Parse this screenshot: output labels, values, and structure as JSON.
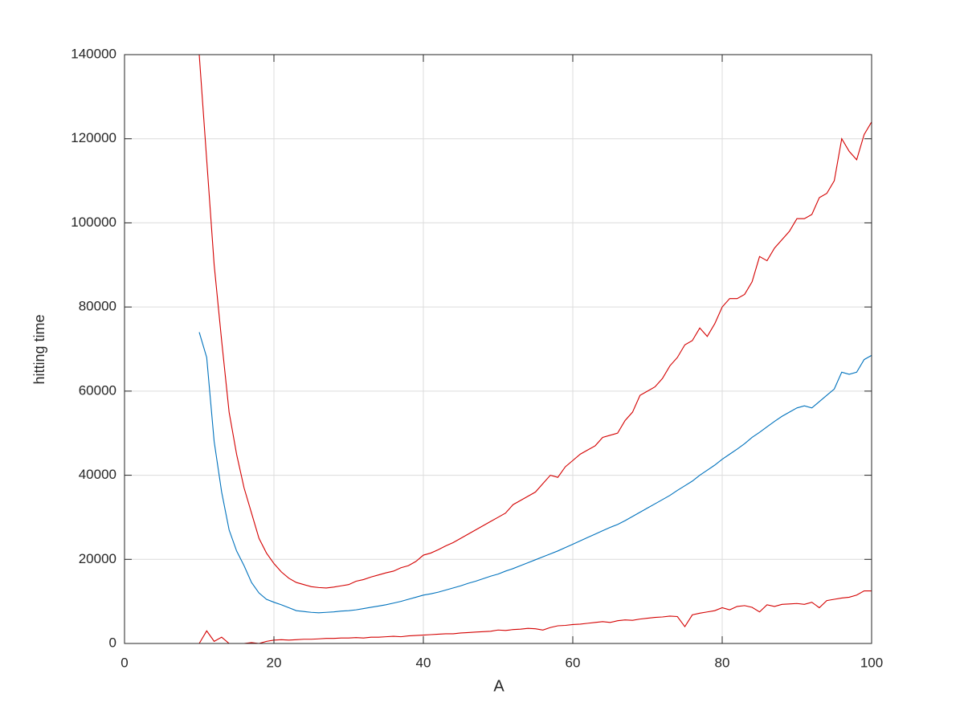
{
  "chart_data": {
    "type": "line",
    "x_label": "A",
    "y_label": "hitting time",
    "x": [
      10,
      11,
      12,
      13,
      14,
      15,
      16,
      17,
      18,
      19,
      20,
      21,
      22,
      23,
      24,
      25,
      26,
      27,
      28,
      29,
      30,
      31,
      32,
      33,
      34,
      35,
      36,
      37,
      38,
      39,
      40,
      41,
      42,
      43,
      44,
      45,
      46,
      47,
      48,
      49,
      50,
      51,
      52,
      53,
      54,
      55,
      56,
      57,
      58,
      59,
      60,
      61,
      62,
      63,
      64,
      65,
      66,
      67,
      68,
      69,
      70,
      71,
      72,
      73,
      74,
      75,
      76,
      77,
      78,
      79,
      80,
      81,
      82,
      83,
      84,
      85,
      86,
      87,
      88,
      89,
      90,
      91,
      92,
      93,
      94,
      95,
      96,
      97,
      98,
      99,
      100
    ],
    "series": [
      {
        "color": "#d40000",
        "values": [
          140000,
          115000,
          90000,
          72000,
          55000,
          45000,
          37000,
          31000,
          25000,
          21500,
          19000,
          17000,
          15500,
          14500,
          14000,
          13500,
          13300,
          13200,
          13400,
          13700,
          14000,
          14800,
          15200,
          15800,
          16300,
          16800,
          17200,
          18000,
          18500,
          19500,
          21000,
          21500,
          22300,
          23200,
          24000,
          25000,
          26000,
          27000,
          28000,
          29000,
          30000,
          31000,
          33000,
          34000,
          35000,
          36000,
          38000,
          40000,
          39500,
          42000,
          43500,
          45000,
          46000,
          47000,
          49000,
          49500,
          50000,
          53000,
          55000,
          59000,
          60000,
          61000,
          63000,
          66000,
          68000,
          71000,
          72000,
          75000,
          73000,
          76000,
          80000,
          82000,
          82000,
          83000,
          86000,
          92000,
          91000,
          94000,
          96000,
          98000,
          101000,
          101000,
          102000,
          106000,
          107000,
          110000,
          120000,
          117000,
          115000,
          121000,
          124000
        ]
      },
      {
        "color": "#0072bd",
        "values": [
          74000,
          68000,
          48000,
          36000,
          27000,
          22000,
          18500,
          14500,
          12000,
          10500,
          9800,
          9200,
          8500,
          7800,
          7600,
          7400,
          7300,
          7400,
          7500,
          7700,
          7800,
          8000,
          8300,
          8600,
          8900,
          9200,
          9600,
          10000,
          10500,
          11000,
          11500,
          11800,
          12200,
          12700,
          13200,
          13700,
          14300,
          14800,
          15400,
          16000,
          16500,
          17200,
          17800,
          18500,
          19200,
          19900,
          20600,
          21300,
          22000,
          22800,
          23600,
          24400,
          25200,
          26000,
          26800,
          27600,
          28300,
          29200,
          30200,
          31200,
          32200,
          33200,
          34200,
          35200,
          36400,
          37500,
          38600,
          40000,
          41200,
          42400,
          43800,
          45000,
          46200,
          47500,
          49000,
          50200,
          51500,
          52800,
          54000,
          55000,
          56000,
          56500,
          56000,
          57500,
          59000,
          60500,
          64500,
          64000,
          64500,
          67500,
          68500
        ]
      },
      {
        "color": "#d40000",
        "values": [
          0,
          3000,
          500,
          1500,
          0,
          0,
          0,
          200,
          0,
          500,
          800,
          900,
          800,
          900,
          1000,
          1000,
          1100,
          1200,
          1200,
          1300,
          1300,
          1400,
          1300,
          1500,
          1500,
          1600,
          1700,
          1600,
          1800,
          1900,
          2000,
          2100,
          2200,
          2300,
          2300,
          2500,
          2600,
          2700,
          2800,
          2900,
          3200,
          3100,
          3300,
          3400,
          3600,
          3500,
          3200,
          3800,
          4200,
          4300,
          4500,
          4600,
          4800,
          5000,
          5200,
          5000,
          5400,
          5600,
          5500,
          5800,
          6000,
          6200,
          6300,
          6500,
          6400,
          4000,
          6800,
          7200,
          7500,
          7800,
          8500,
          8000,
          8800,
          9000,
          8600,
          7500,
          9200,
          8800,
          9300,
          9400,
          9500,
          9300,
          9800,
          8500,
          10200,
          10500,
          10800,
          11000,
          11500,
          12500,
          12500
        ]
      }
    ],
    "xlim": [
      0,
      100
    ],
    "xticks": [
      0,
      20,
      40,
      60,
      80,
      100
    ],
    "ylim": [
      0,
      140000
    ],
    "yticks": [
      0,
      20000,
      40000,
      60000,
      80000,
      100000,
      120000,
      140000
    ],
    "grid": true
  }
}
